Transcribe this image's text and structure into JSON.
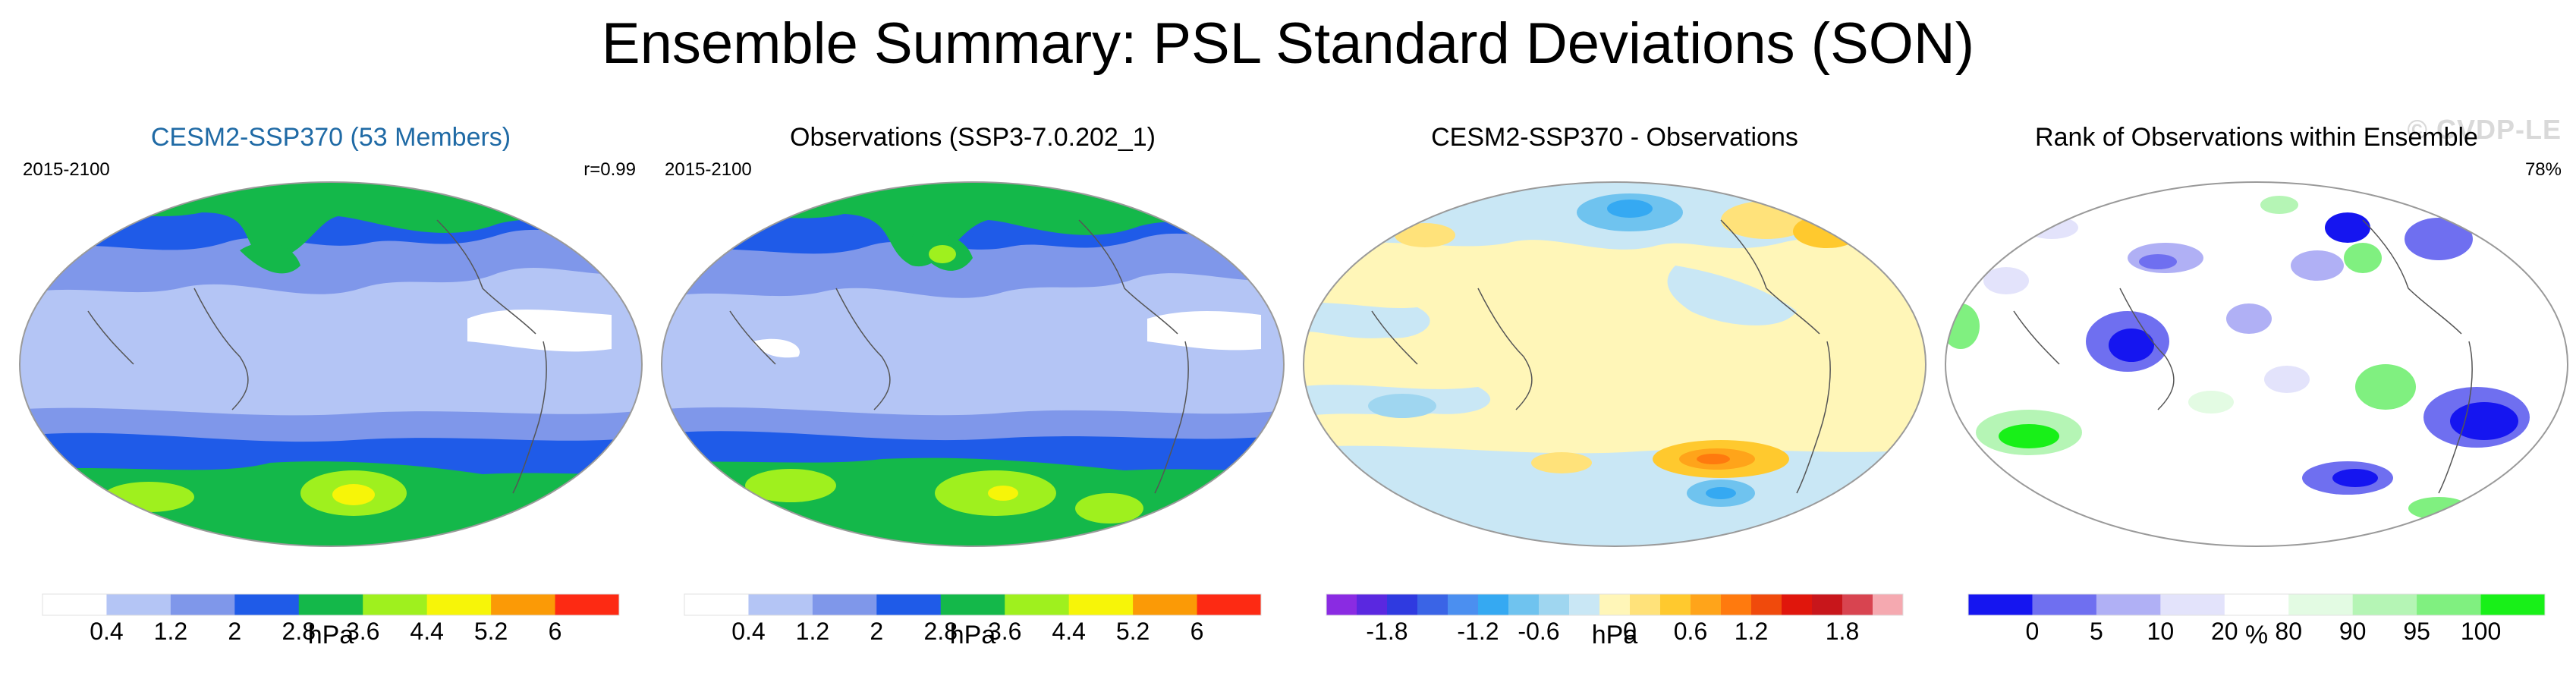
{
  "title": "Ensemble Summary: PSL Standard Deviations (SON)",
  "watermark": "© CVDP-LE",
  "panels": [
    {
      "title": "CESM2-SSP370 (53 Members)",
      "title_color": "#1f6aa5",
      "period": "2015-2100",
      "stat": "r=0.99",
      "unit": "hPa",
      "colorbar": {
        "colors": [
          "#ffffff",
          "#b4c5f5",
          "#7f97ea",
          "#1f5be8",
          "#14b84a",
          "#9ff01e",
          "#f7f508",
          "#fb9a06",
          "#fd2a13"
        ],
        "tick_labels": [
          "0.4",
          "1.2",
          "2",
          "2.8",
          "3.6",
          "4.4",
          "5.2",
          "6"
        ]
      }
    },
    {
      "title": "Observations (SSP3-7.0.202_1)",
      "title_color": "#000000",
      "period": "2015-2100",
      "stat": "",
      "unit": "hPa",
      "colorbar": {
        "colors": [
          "#ffffff",
          "#b4c5f5",
          "#7f97ea",
          "#1f5be8",
          "#14b84a",
          "#9ff01e",
          "#f7f508",
          "#fb9a06",
          "#fd2a13"
        ],
        "tick_labels": [
          "0.4",
          "1.2",
          "2",
          "2.8",
          "3.6",
          "4.4",
          "5.2",
          "6"
        ]
      }
    },
    {
      "title": "CESM2-SSP370 - Observations",
      "title_color": "#000000",
      "period": "",
      "stat": "",
      "unit": "hPa",
      "colorbar": {
        "colors": [
          "#8a2be2",
          "#5a28e0",
          "#2f3ae0",
          "#3a64e6",
          "#4b8ff0",
          "#35a9f2",
          "#6fc3ef",
          "#9fd6f0",
          "#c9e7f5",
          "#fff6b8",
          "#ffe27a",
          "#ffc92e",
          "#ffa41a",
          "#ff7a0e",
          "#f04a0c",
          "#e0160c",
          "#c8161b",
          "#d84450",
          "#f5a9b0"
        ],
        "tick_labels": [
          "-1.8",
          "-1.2",
          "-0.6",
          "0",
          "0.6",
          "1.2",
          "1.8"
        ]
      }
    },
    {
      "title": "Rank of Observations within Ensemble",
      "title_color": "#000000",
      "period": "",
      "stat": "78%",
      "unit": "%",
      "colorbar": {
        "colors": [
          "#1515f0",
          "#6f6ff0",
          "#b0b0f5",
          "#e3e3fb",
          "#ffffff",
          "#e3fbe3",
          "#b5f5b5",
          "#80f080",
          "#18f018"
        ],
        "tick_labels": [
          "0",
          "5",
          "10",
          "20",
          "80",
          "90",
          "95",
          "100"
        ]
      }
    }
  ]
}
